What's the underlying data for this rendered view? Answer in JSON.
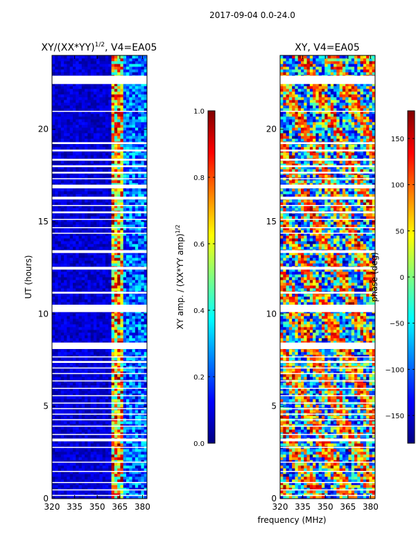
{
  "figure_title": "2017-09-04 0.0-24.0",
  "colors": {
    "jet": [
      "#000080",
      "#0000ff",
      "#0080ff",
      "#00ffff",
      "#80ff80",
      "#ffff00",
      "#ff8000",
      "#ff0000",
      "#800000"
    ],
    "gap": "#ffffff",
    "frame": "#000000"
  },
  "chart_data": [
    {
      "type": "heatmap",
      "title_main": "XY/(XX*YY)",
      "title_exp": "1/2",
      "title_tail": ", V4=EA05",
      "xlabel": "",
      "ylabel": "UT (hours)",
      "xlim": [
        320,
        383
      ],
      "ylim": [
        0,
        24
      ],
      "xticks": [
        "320",
        "335",
        "350",
        "365",
        "380"
      ],
      "xtick_values": [
        320,
        335,
        350,
        365,
        380
      ],
      "yticks": [
        "0",
        "5",
        "10",
        "15",
        "20"
      ],
      "ytick_values": [
        0,
        5,
        10,
        15,
        20
      ],
      "value_kind": "amplitude",
      "bright_band_mhz": [
        360,
        368
      ],
      "colorbar": {
        "label_main": "XY amp. / (XX*YY amp)",
        "label_exp": "1/2",
        "range": [
          0.0,
          1.0
        ],
        "ticks": [
          "0.0",
          "0.2",
          "0.4",
          "0.6",
          "0.8",
          "1.0"
        ],
        "tick_values": [
          0.0,
          0.2,
          0.4,
          0.6,
          0.8,
          1.0
        ]
      },
      "gaps_ut_hours": [
        [
          0.15,
          0.2
        ],
        [
          0.45,
          0.5
        ],
        [
          0.85,
          0.9
        ],
        [
          1.45,
          1.5
        ],
        [
          1.95,
          2.0
        ],
        [
          2.75,
          2.8
        ],
        [
          3.1,
          3.25
        ],
        [
          3.45,
          3.5
        ],
        [
          3.9,
          3.95
        ],
        [
          4.25,
          4.3
        ],
        [
          4.55,
          4.6
        ],
        [
          4.85,
          4.9
        ],
        [
          5.15,
          5.2
        ],
        [
          5.55,
          5.6
        ],
        [
          5.95,
          6.0
        ],
        [
          6.35,
          6.4
        ],
        [
          6.75,
          6.8
        ],
        [
          7.05,
          7.1
        ],
        [
          7.35,
          7.45
        ],
        [
          7.65,
          7.7
        ],
        [
          8.1,
          8.45
        ],
        [
          10.1,
          10.5
        ],
        [
          11.1,
          11.2
        ],
        [
          12.4,
          12.55
        ],
        [
          13.3,
          13.45
        ],
        [
          14.35,
          14.4
        ],
        [
          14.65,
          14.7
        ],
        [
          15.1,
          15.15
        ],
        [
          15.45,
          15.55
        ],
        [
          15.85,
          15.9
        ],
        [
          16.2,
          16.35
        ],
        [
          16.8,
          17.0
        ],
        [
          17.3,
          17.35
        ],
        [
          17.6,
          17.7
        ],
        [
          17.95,
          18.05
        ],
        [
          18.3,
          18.4
        ],
        [
          18.8,
          18.9
        ],
        [
          19.2,
          19.3
        ],
        [
          20.95,
          21.0
        ],
        [
          22.45,
          22.9
        ]
      ]
    },
    {
      "type": "heatmap",
      "title_main": "XY, V4=EA05",
      "xlabel": "frequency (MHz)",
      "ylabel": "",
      "xlim": [
        320,
        383
      ],
      "ylim": [
        0,
        24
      ],
      "xticks": [
        "320",
        "335",
        "350",
        "365",
        "380"
      ],
      "xtick_values": [
        320,
        335,
        350,
        365,
        380
      ],
      "yticks": [
        "0",
        "5",
        "10",
        "15",
        "20"
      ],
      "ytick_values": [
        0,
        5,
        10,
        15,
        20
      ],
      "value_kind": "phase",
      "colorbar": {
        "label": "phase (deg)",
        "range": [
          -180,
          180
        ],
        "ticks": [
          "−150",
          "−100",
          "−50",
          "0",
          "50",
          "100",
          "150"
        ],
        "tick_values": [
          -150,
          -100,
          -50,
          0,
          50,
          100,
          150
        ]
      },
      "gaps_ut_hours": [
        [
          0.15,
          0.2
        ],
        [
          0.45,
          0.5
        ],
        [
          0.85,
          0.9
        ],
        [
          1.45,
          1.5
        ],
        [
          1.95,
          2.0
        ],
        [
          2.75,
          2.8
        ],
        [
          3.1,
          3.25
        ],
        [
          3.45,
          3.5
        ],
        [
          3.9,
          3.95
        ],
        [
          4.25,
          4.3
        ],
        [
          4.55,
          4.6
        ],
        [
          4.85,
          4.9
        ],
        [
          5.15,
          5.2
        ],
        [
          5.55,
          5.6
        ],
        [
          5.95,
          6.0
        ],
        [
          6.35,
          6.4
        ],
        [
          6.75,
          6.8
        ],
        [
          7.05,
          7.1
        ],
        [
          7.35,
          7.45
        ],
        [
          7.65,
          7.7
        ],
        [
          8.1,
          8.45
        ],
        [
          10.1,
          10.5
        ],
        [
          11.1,
          11.2
        ],
        [
          12.4,
          12.55
        ],
        [
          13.3,
          13.45
        ],
        [
          14.35,
          14.4
        ],
        [
          14.65,
          14.7
        ],
        [
          15.1,
          15.15
        ],
        [
          15.45,
          15.55
        ],
        [
          15.85,
          15.9
        ],
        [
          16.2,
          16.35
        ],
        [
          16.8,
          17.0
        ],
        [
          17.3,
          17.35
        ],
        [
          17.6,
          17.7
        ],
        [
          17.95,
          18.05
        ],
        [
          18.3,
          18.4
        ],
        [
          18.8,
          18.9
        ],
        [
          19.2,
          19.3
        ],
        [
          20.95,
          21.0
        ],
        [
          22.45,
          22.9
        ]
      ]
    }
  ]
}
